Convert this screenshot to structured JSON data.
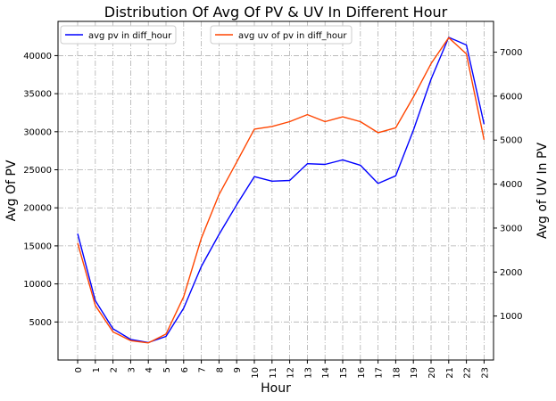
{
  "chart_data": {
    "type": "line",
    "title": "Distribution Of Avg Of PV & UV In Different Hour",
    "xlabel": "Hour",
    "ylabel_left": "Avg Of PV",
    "ylabel_right": "Avg of UV In PV",
    "categories": [
      "0",
      "1",
      "2",
      "3",
      "4",
      "5",
      "6",
      "7",
      "8",
      "9",
      "10",
      "11",
      "12",
      "13",
      "14",
      "15",
      "16",
      "17",
      "18",
      "19",
      "20",
      "21",
      "22",
      "23"
    ],
    "ylim_left": [
      0,
      44500
    ],
    "yticks_left": [
      5000,
      10000,
      15000,
      20000,
      25000,
      30000,
      35000,
      40000
    ],
    "ylim_right": [
      0,
      7700
    ],
    "yticks_right": [
      1000,
      2000,
      3000,
      4000,
      5000,
      6000,
      7000
    ],
    "grid": true,
    "series": [
      {
        "name": "avg pv in diff_hour",
        "axis": "left",
        "color": "#0000ff",
        "values": [
          16600,
          7800,
          4100,
          2700,
          2300,
          3100,
          6800,
          12300,
          16500,
          20400,
          24100,
          23500,
          23600,
          25800,
          25700,
          26300,
          25600,
          23200,
          24200,
          30200,
          36900,
          42400,
          41400,
          31000
        ]
      },
      {
        "name": "avg uv of pv in diff_hour",
        "axis": "right",
        "color": "#ff4500",
        "values": [
          2660,
          1240,
          640,
          440,
          390,
          590,
          1440,
          2770,
          3760,
          4500,
          5250,
          5310,
          5420,
          5580,
          5420,
          5530,
          5420,
          5170,
          5280,
          5980,
          6740,
          7330,
          6960,
          5010
        ]
      }
    ],
    "legend_left_placement": "upper-left",
    "legend_right_placement": "upper-center"
  }
}
